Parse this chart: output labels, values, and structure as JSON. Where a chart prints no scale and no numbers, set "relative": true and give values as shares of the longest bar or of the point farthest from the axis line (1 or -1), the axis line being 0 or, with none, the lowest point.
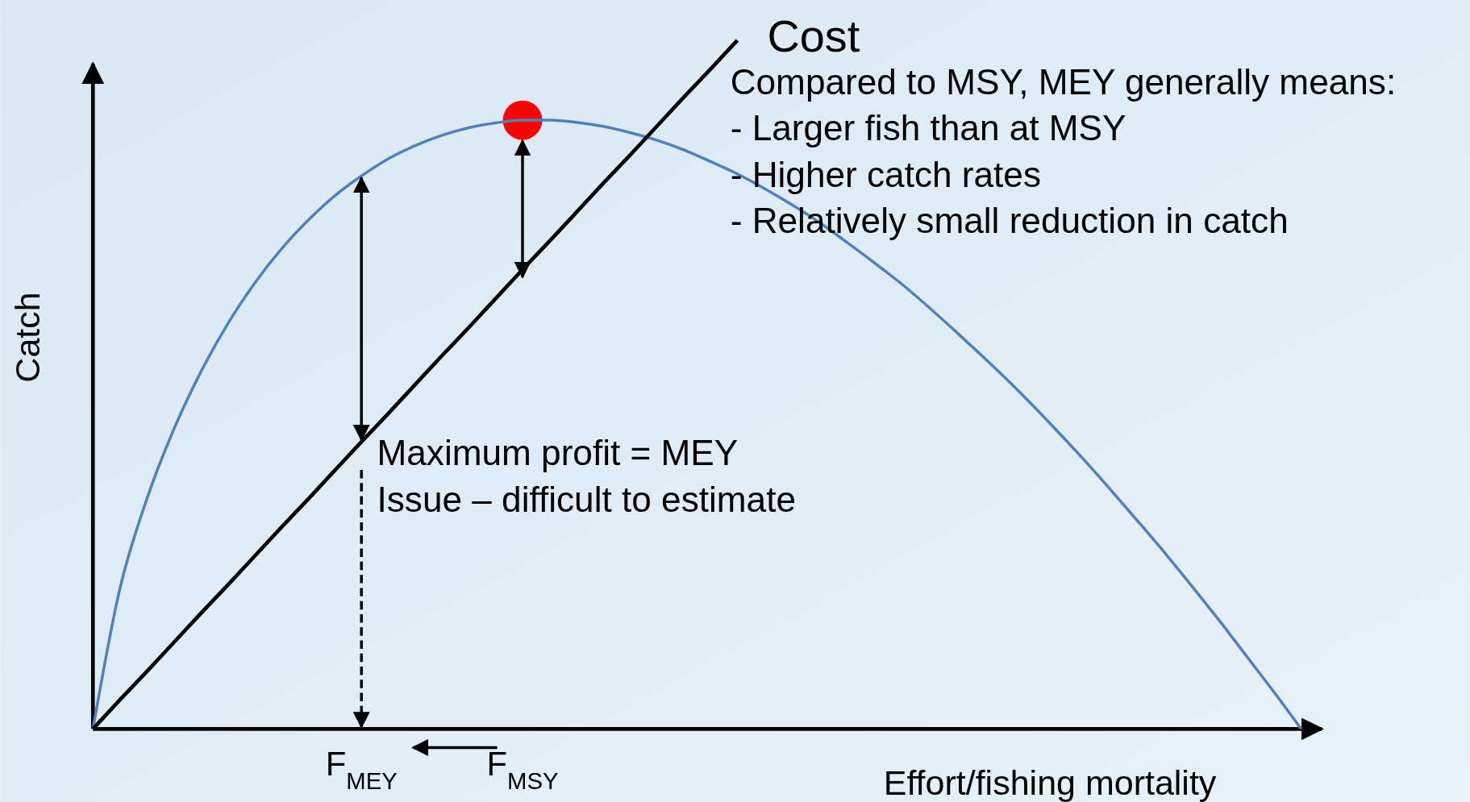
{
  "chart_data": {
    "type": "line",
    "relative": true,
    "xlabel": "Effort/fishing mortality",
    "ylabel": "Catch",
    "categories": [
      null,
      null,
      null,
      null,
      null,
      null,
      null,
      null,
      null,
      null,
      "F$_{MEY}$",
      null,
      null,
      null,
      null,
      null,
      "F$_{MSY}$",
      null,
      null,
      null,
      null,
      null,
      null,
      null,
      null,
      null,
      null,
      null,
      null,
      null,
      null,
      null,
      null,
      null,
      null,
      null,
      null,
      null,
      null,
      null,
      null,
      null,
      null,
      null,
      null,
      null
    ],
    "series": [
      {
        "color": "#4f81bd",
        "values": [
          0,
          0.203,
          0.333,
          0.434,
          0.517,
          0.587,
          0.646,
          0.696,
          0.738,
          0.774,
          0.803,
          0.828,
          0.847,
          0.862,
          0.873,
          0.88,
          0.884,
          0.884,
          0.881,
          0.875,
          0.866,
          0.855,
          0.841,
          0.824,
          0.806,
          0.785,
          0.762,
          0.737,
          0.709,
          0.68,
          0.65,
          0.617,
          0.582,
          0.546,
          0.509,
          0.47,
          0.429,
          0.387,
          0.343,
          0.298,
          0.252,
          0.204,
          0.155,
          0.104,
          0.053,
          0
        ]
      },
      {
        "name": "Cost",
        "color": "#000000",
        "values": [
          0,
          0.042,
          0.083,
          0.125,
          0.167,
          0.208,
          0.25,
          0.292,
          0.333,
          0.375,
          0.417,
          0.458,
          0.5,
          0.542,
          0.583,
          0.625,
          0.667,
          0.708,
          0.75,
          0.792,
          0.833,
          0.875,
          0.917,
          0.958,
          1,
          null,
          null,
          null,
          null,
          null,
          null,
          null,
          null,
          null,
          null,
          null,
          null,
          null,
          null,
          null,
          null,
          null,
          null,
          null,
          null,
          null
        ]
      },
      {
        "type": "scatter",
        "color": "#ff0000",
        "marker": "circle",
        "values": [
          null,
          null,
          null,
          null,
          null,
          null,
          null,
          null,
          null,
          null,
          null,
          null,
          null,
          null,
          null,
          null,
          0.884,
          null,
          null,
          null,
          null,
          null,
          null,
          null,
          null,
          null,
          null,
          null,
          null,
          null,
          null,
          null,
          null,
          null,
          null,
          null,
          null,
          null,
          null,
          null,
          null,
          null,
          null,
          null,
          null,
          null
        ]
      }
    ],
    "annotations": [
      "Maximum profit = MEY",
      "Issue – difficult to estimate",
      "Compared to MSY, MEY generally means:",
      "- Larger fish than at MSY",
      "- Higher catch rates",
      "- Relatively small reduction in catch"
    ],
    "marker": "none"
  }
}
